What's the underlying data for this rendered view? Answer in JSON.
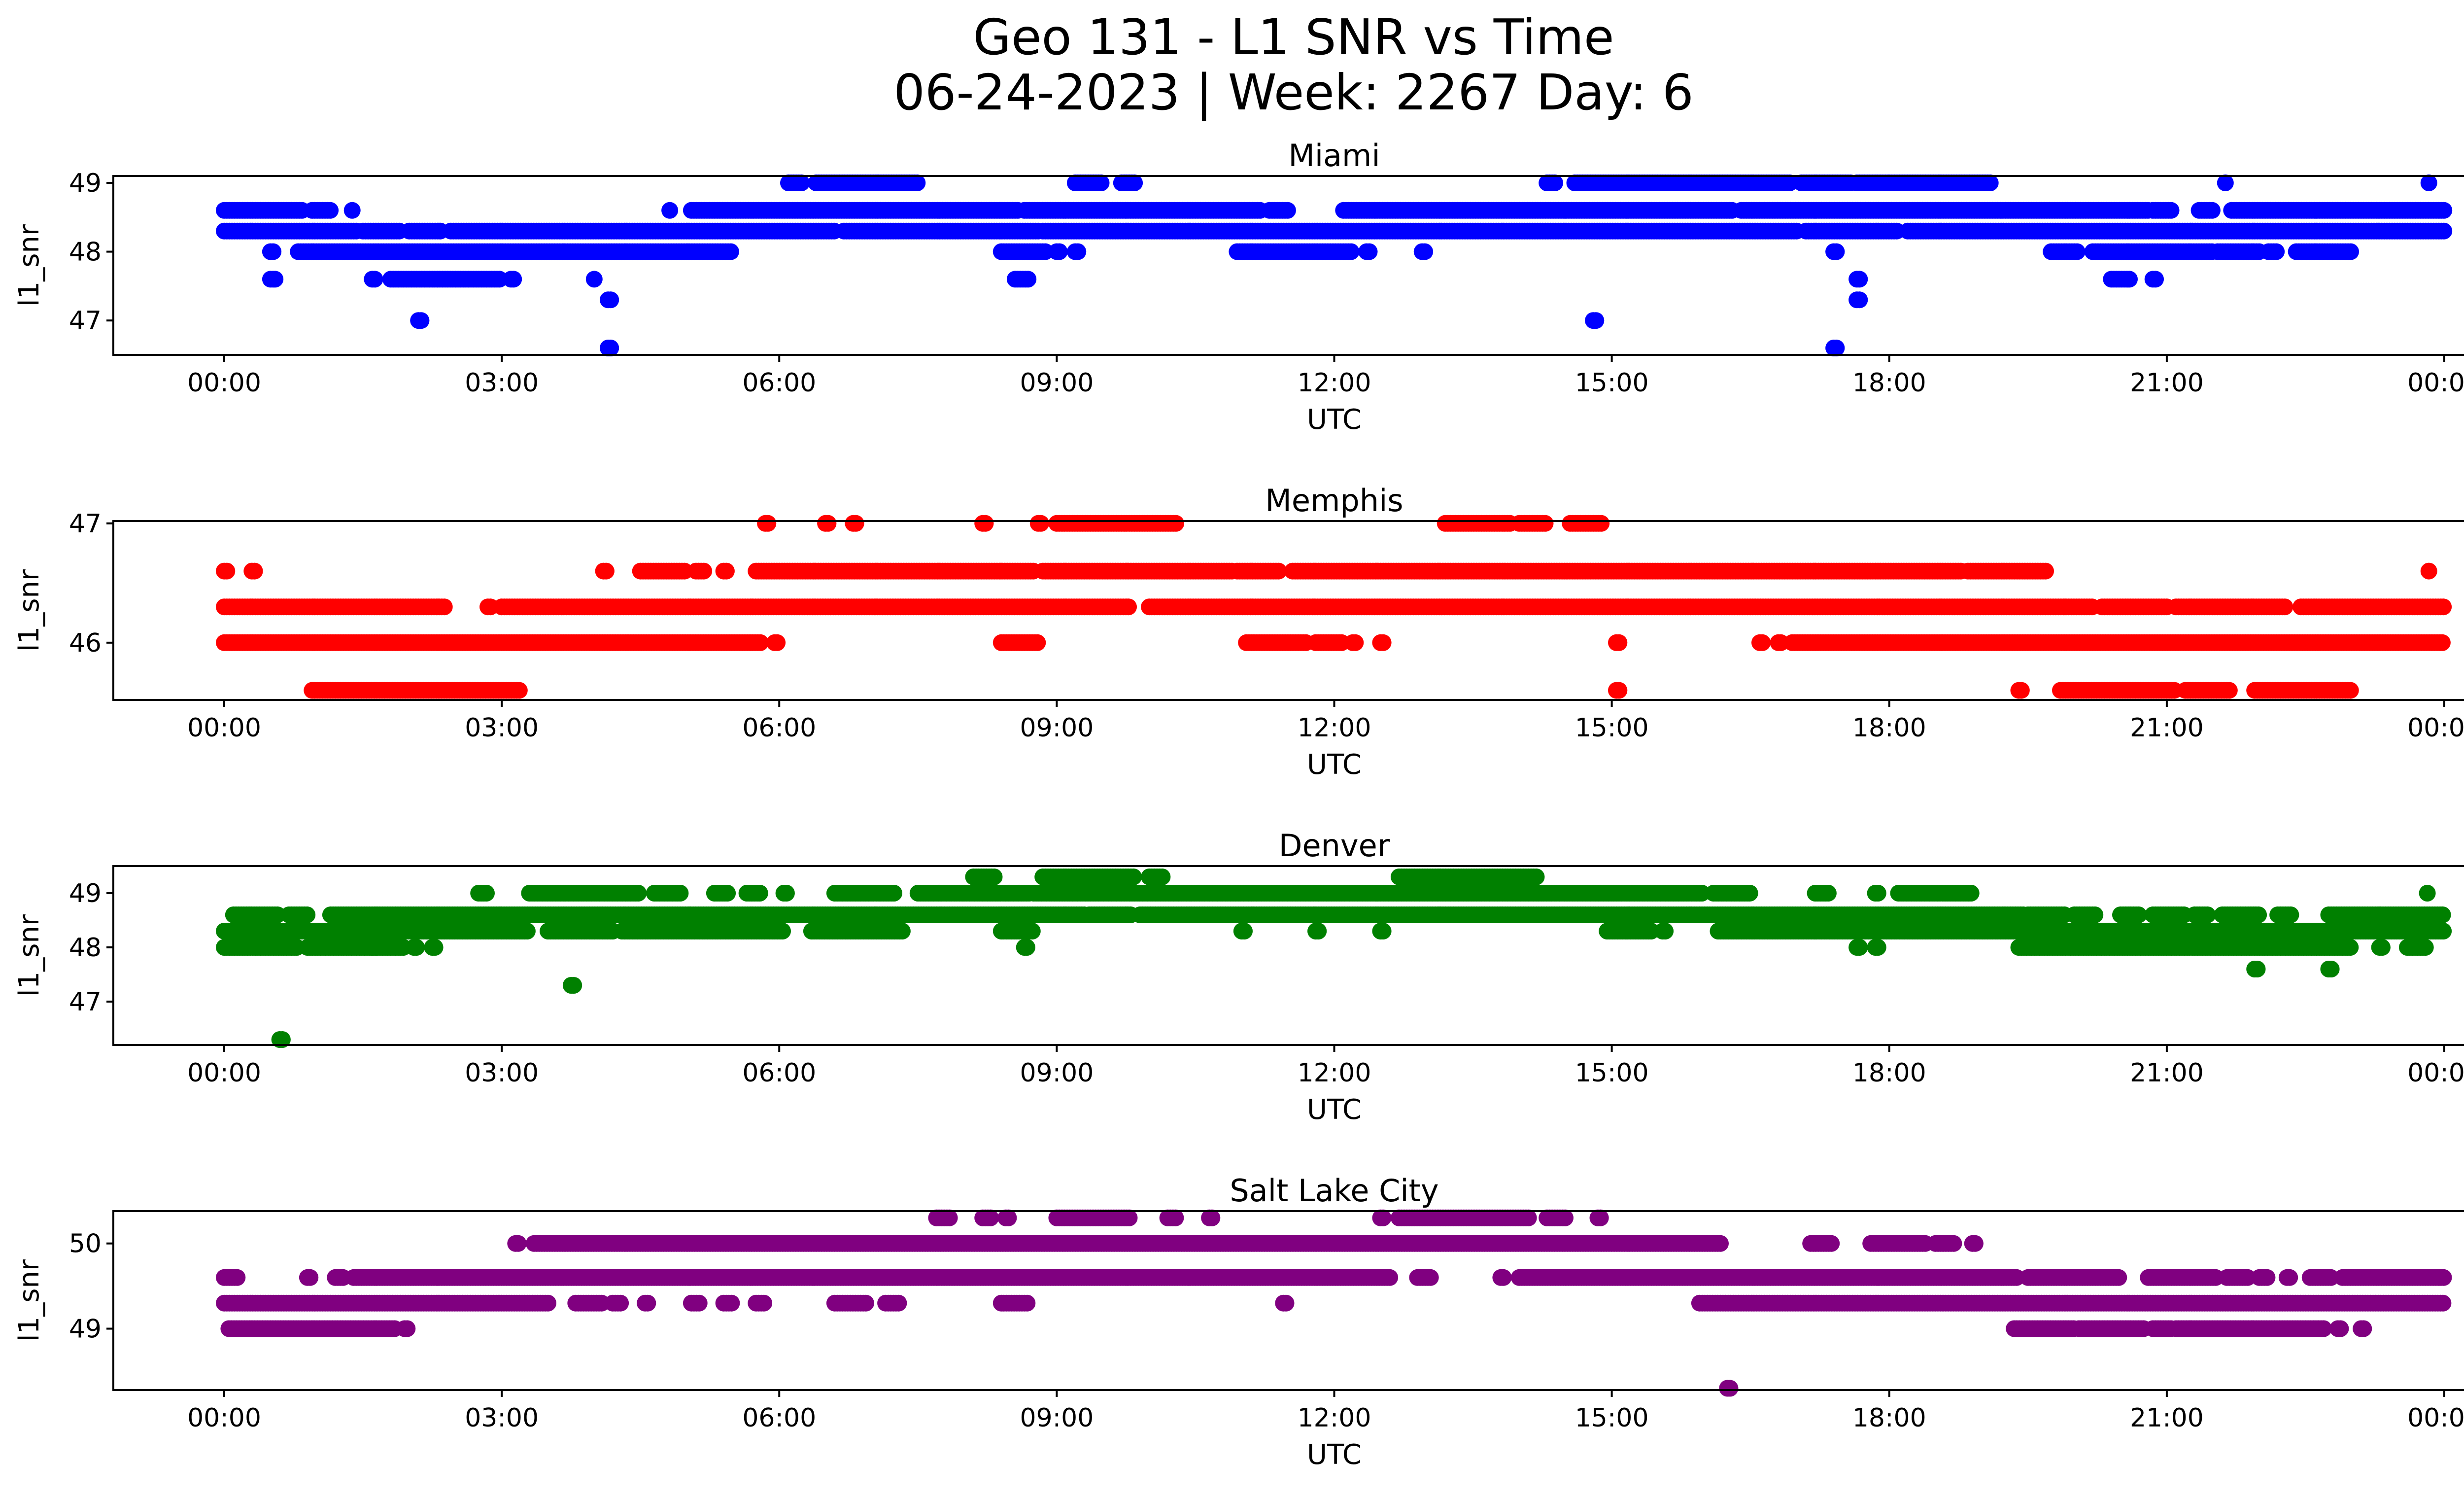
{
  "figure": {
    "title_line1": "Geo 131 - L1 SNR vs Time",
    "title_line2": "06-24-2023 | Week: 2267 Day: 6"
  },
  "chart_data": [
    {
      "type": "scatter",
      "title": "Miami",
      "xlabel": "UTC",
      "ylabel": "l1_snr",
      "color": "#0000ff",
      "xlim": [
        "2023-06-24 00:00",
        "2023-06-25 00:00"
      ],
      "ylim": [
        46.5,
        49.1
      ],
      "x_ticks": [
        "00:00",
        "03:00",
        "06:00",
        "09:00",
        "12:00",
        "15:00",
        "18:00",
        "21:00",
        "00:00"
      ],
      "y_ticks": [
        47,
        48,
        49
      ],
      "bands": [
        {
          "y": 49.0,
          "x_ranges_hours": [
            [
              6.1,
              6.25
            ],
            [
              6.4,
              7.5
            ],
            [
              9.2,
              9.5
            ],
            [
              9.7,
              9.85
            ],
            [
              14.3,
              14.4
            ],
            [
              14.6,
              16.95
            ],
            [
              17.05,
              17.6
            ],
            [
              17.65,
              18.0
            ],
            [
              18.0,
              19.1
            ]
          ]
        },
        {
          "y": 48.6,
          "x_ranges_hours": [
            [
              0.0,
              0.85
            ],
            [
              0.95,
              1.15
            ],
            [
              5.05,
              8.6
            ],
            [
              8.65,
              11.2
            ],
            [
              11.3,
              11.5
            ],
            [
              12.1,
              16.3
            ],
            [
              16.4,
              20.8
            ],
            [
              20.85,
              21.05
            ],
            [
              21.35,
              21.5
            ],
            [
              21.7,
              24.0
            ]
          ]
        },
        {
          "y": 48.3,
          "x_ranges_hours": [
            [
              0.0,
              1.45
            ],
            [
              1.5,
              1.9
            ],
            [
              2.0,
              2.35
            ],
            [
              2.45,
              6.6
            ],
            [
              6.7,
              8.8
            ],
            [
              8.85,
              17.0
            ],
            [
              17.1,
              18.1
            ],
            [
              18.2,
              24.0
            ]
          ]
        },
        {
          "y": 48.0,
          "x_ranges_hours": [
            [
              0.5,
              0.55
            ],
            [
              0.8,
              5.5
            ],
            [
              8.4,
              8.9
            ],
            [
              9.0,
              9.05
            ],
            [
              9.2,
              9.25
            ],
            [
              10.95,
              12.2
            ],
            [
              12.35,
              12.4
            ],
            [
              12.95,
              13.0
            ],
            [
              17.4,
              17.45
            ],
            [
              19.75,
              20.05
            ],
            [
              20.2,
              21.5
            ],
            [
              21.55,
              22.0
            ],
            [
              22.1,
              22.2
            ],
            [
              22.4,
              23.0
            ]
          ]
        },
        {
          "y": 47.6,
          "x_ranges_hours": [
            [
              0.5,
              0.55
            ],
            [
              1.6,
              1.65
            ],
            [
              1.8,
              3.0
            ],
            [
              3.1,
              3.15
            ],
            [
              8.55,
              8.7
            ],
            [
              20.4,
              20.6
            ],
            [
              20.85,
              20.9
            ],
            [
              17.65,
              17.7
            ]
          ]
        },
        {
          "y": 47.3,
          "x_ranges_hours": [
            [
              4.15,
              4.2
            ],
            [
              17.65,
              17.7
            ]
          ]
        },
        {
          "y": 47.0,
          "x_ranges_hours": [
            [
              2.1,
              2.15
            ],
            [
              14.8,
              14.85
            ]
          ]
        },
        {
          "y": 46.6,
          "x_ranges_hours": [
            [
              4.15,
              4.2
            ],
            [
              17.4,
              17.45
            ]
          ]
        }
      ],
      "points": [
        {
          "x": "04:49",
          "y": 48.6
        },
        {
          "x": "01:23",
          "y": 48.6
        },
        {
          "x": "00:33",
          "y": 47.6
        },
        {
          "x": "04:00",
          "y": 47.6
        },
        {
          "x": "21:38",
          "y": 49.0
        },
        {
          "x": "23:50",
          "y": 49.0
        }
      ]
    },
    {
      "type": "scatter",
      "title": "Memphis",
      "xlabel": "UTC",
      "ylabel": "l1_snr",
      "color": "#ff0000",
      "xlim": [
        "2023-06-24 00:00",
        "2023-06-25 00:00"
      ],
      "ylim": [
        45.52,
        47.02
      ],
      "x_ticks": [
        "00:00",
        "03:00",
        "06:00",
        "09:00",
        "12:00",
        "15:00",
        "18:00",
        "21:00",
        "00:00"
      ],
      "y_ticks": [
        46,
        47
      ],
      "bands": [
        {
          "y": 47.0,
          "x_ranges_hours": [
            [
              5.85,
              5.9
            ],
            [
              6.5,
              6.55
            ],
            [
              6.8,
              6.85
            ],
            [
              8.2,
              8.25
            ],
            [
              8.8,
              8.85
            ],
            [
              9.0,
              10.3
            ],
            [
              13.2,
              13.9
            ],
            [
              14.0,
              14.3
            ],
            [
              14.55,
              14.9
            ]
          ]
        },
        {
          "y": 46.6,
          "x_ranges_hours": [
            [
              0.0,
              0.05
            ],
            [
              0.3,
              0.35
            ],
            [
              4.1,
              4.15
            ],
            [
              4.5,
              5.0
            ],
            [
              5.1,
              5.2
            ],
            [
              5.4,
              5.45
            ],
            [
              5.75,
              8.75
            ],
            [
              8.85,
              10.9
            ],
            [
              10.95,
              11.4
            ],
            [
              11.55,
              18.8
            ],
            [
              18.85,
              19.7
            ]
          ]
        },
        {
          "y": 46.3,
          "x_ranges_hours": [
            [
              0.0,
              2.4
            ],
            [
              2.85,
              2.9
            ],
            [
              3.0,
              9.8
            ],
            [
              10.0,
              20.2
            ],
            [
              20.3,
              21.0
            ],
            [
              21.1,
              22.3
            ],
            [
              22.45,
              24.0
            ]
          ]
        },
        {
          "y": 46.0,
          "x_ranges_hours": [
            [
              0.0,
              5.8
            ],
            [
              5.95,
              6.0
            ],
            [
              8.4,
              8.8
            ],
            [
              11.05,
              11.7
            ],
            [
              11.8,
              12.1
            ],
            [
              12.2,
              12.25
            ],
            [
              12.5,
              12.55
            ],
            [
              15.05,
              15.1
            ],
            [
              16.6,
              16.65
            ],
            [
              16.8,
              16.85
            ],
            [
              16.95,
              24.0
            ]
          ]
        },
        {
          "y": 45.6,
          "x_ranges_hours": [
            [
              0.95,
              3.2
            ],
            [
              15.05,
              15.1
            ],
            [
              19.4,
              19.45
            ],
            [
              19.85,
              21.1
            ],
            [
              21.2,
              21.7
            ],
            [
              21.95,
              23.0
            ]
          ]
        }
      ],
      "points": [
        {
          "x": "23:50",
          "y": 46.6
        }
      ]
    },
    {
      "type": "scatter",
      "title": "Denver",
      "xlabel": "UTC",
      "ylabel": "l1_snr",
      "color": "#008000",
      "xlim": [
        "2023-06-24 00:00",
        "2023-06-25 00:00"
      ],
      "ylim": [
        46.2,
        49.5
      ],
      "x_ticks": [
        "00:00",
        "03:00",
        "06:00",
        "09:00",
        "12:00",
        "15:00",
        "18:00",
        "21:00",
        "00:00"
      ],
      "y_ticks": [
        47,
        48,
        49
      ],
      "bands": [
        {
          "y": 49.3,
          "x_ranges_hours": [
            [
              8.1,
              8.35
            ],
            [
              8.85,
              9.85
            ],
            [
              10.0,
              10.15
            ],
            [
              12.7,
              14.2
            ]
          ]
        },
        {
          "y": 49.0,
          "x_ranges_hours": [
            [
              2.75,
              2.85
            ],
            [
              3.3,
              4.5
            ],
            [
              4.65,
              4.95
            ],
            [
              5.3,
              5.45
            ],
            [
              5.65,
              5.8
            ],
            [
              6.05,
              6.1
            ],
            [
              6.6,
              7.1
            ],
            [
              7.1,
              7.25
            ],
            [
              7.5,
              8.0
            ],
            [
              8.0,
              8.7
            ],
            [
              8.75,
              16.0
            ],
            [
              16.1,
              16.5
            ],
            [
              17.2,
              17.35
            ],
            [
              17.85,
              17.9
            ],
            [
              18.1,
              18.9
            ]
          ]
        },
        {
          "y": 48.6,
          "x_ranges_hours": [
            [
              0.1,
              0.6
            ],
            [
              0.7,
              0.9
            ],
            [
              1.15,
              9.3
            ],
            [
              9.35,
              9.8
            ],
            [
              9.9,
              19.45
            ],
            [
              19.5,
              19.9
            ],
            [
              20.0,
              20.25
            ],
            [
              20.5,
              20.7
            ],
            [
              20.85,
              21.2
            ],
            [
              21.3,
              21.45
            ],
            [
              21.6,
              22.0
            ],
            [
              22.2,
              22.35
            ],
            [
              22.75,
              24.0
            ]
          ]
        },
        {
          "y": 48.3,
          "x_ranges_hours": [
            [
              0.0,
              3.3
            ],
            [
              3.5,
              4.2
            ],
            [
              4.3,
              6.05
            ],
            [
              6.35,
              7.35
            ],
            [
              8.4,
              8.75
            ],
            [
              11.0,
              11.05
            ],
            [
              11.8,
              11.85
            ],
            [
              12.5,
              12.55
            ],
            [
              14.95,
              15.45
            ],
            [
              15.55,
              15.6
            ],
            [
              16.15,
              24.0
            ]
          ]
        },
        {
          "y": 48.0,
          "x_ranges_hours": [
            [
              0.0,
              0.8
            ],
            [
              0.9,
              1.6
            ],
            [
              1.6,
              1.95
            ],
            [
              2.05,
              2.1
            ],
            [
              2.25,
              2.3
            ],
            [
              8.65,
              8.7
            ],
            [
              17.65,
              17.7
            ],
            [
              17.85,
              17.9
            ],
            [
              19.4,
              23.0
            ],
            [
              23.3,
              23.35
            ],
            [
              23.6,
              23.8
            ]
          ]
        },
        {
          "y": 47.6,
          "x_ranges_hours": [
            [
              21.95,
              22.0
            ],
            [
              22.75,
              22.8
            ]
          ]
        },
        {
          "y": 47.3,
          "x_ranges_hours": [
            [
              3.75,
              3.8
            ]
          ]
        },
        {
          "y": 46.3,
          "x_ranges_hours": [
            [
              0.6,
              0.65
            ]
          ]
        }
      ],
      "points": [
        {
          "x": "23:49",
          "y": 49.0
        }
      ]
    },
    {
      "type": "scatter",
      "title": "Salt Lake City",
      "xlabel": "UTC",
      "ylabel": "l1_snr",
      "color": "#800080",
      "xlim": [
        "2023-06-24 00:00",
        "2023-06-25 00:00"
      ],
      "ylim": [
        48.28,
        50.38
      ],
      "x_ticks": [
        "00:00",
        "03:00",
        "06:00",
        "09:00",
        "12:00",
        "15:00",
        "18:00",
        "21:00",
        "00:00"
      ],
      "y_ticks": [
        49,
        50
      ],
      "bands": [
        {
          "y": 50.3,
          "x_ranges_hours": [
            [
              7.7,
              7.85
            ],
            [
              8.2,
              8.3
            ],
            [
              8.45,
              8.5
            ],
            [
              9.0,
              9.8
            ],
            [
              10.2,
              10.3
            ],
            [
              10.65,
              10.7
            ],
            [
              12.5,
              12.55
            ],
            [
              12.7,
              14.1
            ],
            [
              14.3,
              14.5
            ],
            [
              14.85,
              14.9
            ]
          ]
        },
        {
          "y": 50.0,
          "x_ranges_hours": [
            [
              3.15,
              3.2
            ],
            [
              3.35,
              16.2
            ],
            [
              17.15,
              17.4
            ],
            [
              17.8,
              18.4
            ],
            [
              18.5,
              18.7
            ],
            [
              18.9,
              18.95
            ]
          ]
        },
        {
          "y": 49.6,
          "x_ranges_hours": [
            [
              0.0,
              0.15
            ],
            [
              0.9,
              0.95
            ],
            [
              1.2,
              1.3
            ],
            [
              1.4,
              12.6
            ],
            [
              12.9,
              13.05
            ],
            [
              13.8,
              13.85
            ],
            [
              14.0,
              19.4
            ],
            [
              19.5,
              20.5
            ],
            [
              20.8,
              21.55
            ],
            [
              21.65,
              21.9
            ],
            [
              22.0,
              22.1
            ],
            [
              22.3,
              22.35
            ],
            [
              22.55,
              22.8
            ],
            [
              22.9,
              24.0
            ]
          ]
        },
        {
          "y": 49.3,
          "x_ranges_hours": [
            [
              0.0,
              3.5
            ],
            [
              3.8,
              4.1
            ],
            [
              4.2,
              4.3
            ],
            [
              4.55,
              4.6
            ],
            [
              5.05,
              5.15
            ],
            [
              5.4,
              5.5
            ],
            [
              5.75,
              5.85
            ],
            [
              6.6,
              6.95
            ],
            [
              7.15,
              7.3
            ],
            [
              8.4,
              8.7
            ],
            [
              11.45,
              11.5
            ],
            [
              15.95,
              24.0
            ]
          ]
        },
        {
          "y": 49.0,
          "x_ranges_hours": [
            [
              0.05,
              1.85
            ],
            [
              1.95,
              2.0
            ],
            [
              19.35,
              20.0
            ],
            [
              20.05,
              20.75
            ],
            [
              20.85,
              21.05
            ],
            [
              21.1,
              22.7
            ],
            [
              22.85,
              22.9
            ],
            [
              23.1,
              23.15
            ]
          ]
        },
        {
          "y": 48.3,
          "x_ranges_hours": [
            [
              16.25,
              16.3
            ]
          ]
        }
      ],
      "points": []
    }
  ]
}
